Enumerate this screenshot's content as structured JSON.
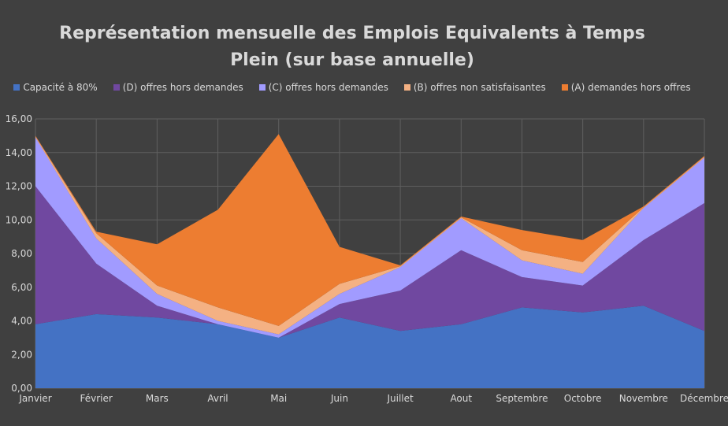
{
  "chart_data": {
    "type": "area",
    "stacked": true,
    "title_line1": "Représentation mensuelle des Emplois Equivalents à Temps",
    "title_line2": "Plein (sur base annuelle)",
    "categories": [
      "Janvier",
      "Février",
      "Mars",
      "Avril",
      "Mai",
      "Juin",
      "Juillet",
      "Aout",
      "Septembre",
      "Octobre",
      "Novembre",
      "Décembre"
    ],
    "ylim": [
      0,
      16
    ],
    "yticks": [
      "0,00",
      "2,00",
      "4,00",
      "6,00",
      "8,00",
      "10,00",
      "12,00",
      "14,00",
      "16,00"
    ],
    "grid": true,
    "legend_position": "top",
    "series": [
      {
        "name": "Capacité à 80%",
        "color": "#4472c4",
        "values": [
          3.8,
          4.4,
          4.2,
          3.8,
          3.0,
          4.2,
          3.4,
          3.8,
          4.8,
          4.5,
          4.9,
          3.4
        ]
      },
      {
        "name": "(D) offres hors demandes",
        "color": "#7048a0",
        "values": [
          8.2,
          3.0,
          0.7,
          0.0,
          0.0,
          0.8,
          2.4,
          4.4,
          1.8,
          1.6,
          3.9,
          7.6
        ]
      },
      {
        "name": "(C) offres hors demandes",
        "color": "#a19bff",
        "values": [
          2.9,
          1.5,
          0.7,
          0.2,
          0.2,
          0.6,
          1.4,
          1.9,
          1.0,
          0.7,
          1.9,
          2.7
        ]
      },
      {
        "name": "(B) offres non satisfaisantes",
        "color": "#f4b183",
        "values": [
          0.05,
          0.3,
          0.5,
          0.8,
          0.5,
          0.6,
          0.05,
          0.05,
          0.6,
          0.7,
          0.05,
          0.05
        ]
      },
      {
        "name": "(A) demandes hors offres",
        "color": "#ed7d31",
        "values": [
          0.05,
          0.1,
          2.45,
          5.8,
          11.4,
          2.2,
          0.05,
          0.05,
          1.2,
          1.3,
          0.05,
          0.05
        ]
      }
    ]
  }
}
